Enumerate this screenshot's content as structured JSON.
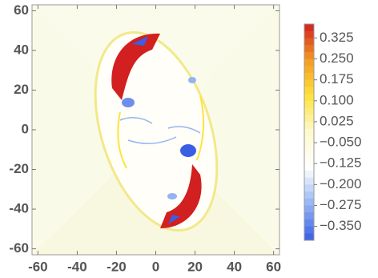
{
  "chart_data": {
    "type": "density",
    "xlim": [
      -63,
      63
    ],
    "ylim": [
      -63,
      63
    ],
    "xticks": [
      -60,
      -40,
      -20,
      0,
      20,
      40,
      60
    ],
    "yticks": [
      -60,
      -40,
      -20,
      0,
      20,
      40,
      60
    ],
    "colorbar": {
      "lim": [
        -0.4,
        0.375
      ],
      "ticks": [
        0.325,
        {
          "value": 0.25,
          "label": "0.250"
        },
        0.175,
        {
          "value": 0.1,
          "label": "0.100"
        },
        0.025,
        {
          "value": -0.05,
          "label": "−0.050"
        },
        {
          "value": -0.125,
          "label": "−0.125"
        },
        {
          "value": -0.2,
          "label": "−0.200"
        },
        {
          "value": -0.275,
          "label": "−0.275"
        },
        {
          "value": -0.35,
          "label": "−0.350"
        }
      ],
      "colormap": [
        "#3a5ee6",
        "#93b4f2",
        "#ffffff",
        "#fdf9cf",
        "#ffe33c",
        "#f49a22",
        "#d21f1f"
      ]
    }
  }
}
